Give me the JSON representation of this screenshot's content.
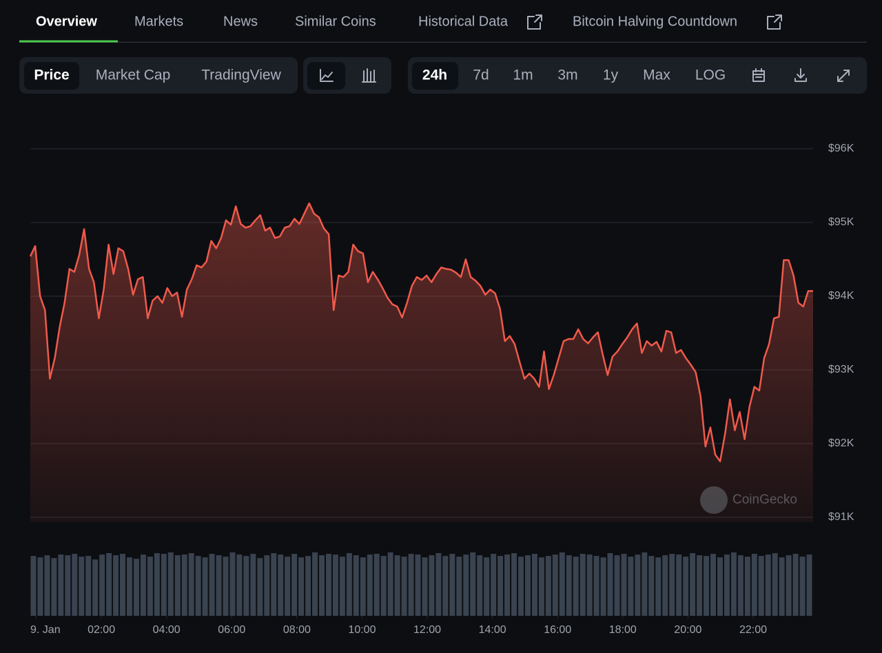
{
  "tabs": [
    "Overview",
    "Markets",
    "News",
    "Similar Coins",
    "Historical Data",
    "Bitcoin Halving Countdown"
  ],
  "chart_tabs": [
    "Price",
    "Market Cap",
    "TradingView"
  ],
  "ranges": [
    "24h",
    "7d",
    "1m",
    "3m",
    "1y",
    "Max",
    "LOG"
  ],
  "watermark": "CoinGecko",
  "chart_data": {
    "type": "line",
    "series": [
      {
        "color": "#f05a4b",
        "values": [
          94540,
          94680,
          94000,
          93810,
          92880,
          93160,
          93580,
          93910,
          94370,
          94330,
          94560,
          94910,
          94370,
          94190,
          93700,
          94090,
          94700,
          94300,
          94650,
          94610,
          94370,
          94020,
          94230,
          94260,
          93700,
          93940,
          94000,
          93910,
          94110,
          94000,
          94050,
          93720,
          94090,
          94230,
          94420,
          94390,
          94470,
          94750,
          94650,
          94790,
          95030,
          94970,
          95220,
          94980,
          94930,
          94950,
          95030,
          95100,
          94890,
          94930,
          94790,
          94810,
          94930,
          94950,
          95050,
          94980,
          95120,
          95260,
          95120,
          95070,
          94920,
          94840,
          93810,
          94280,
          94260,
          94330,
          94700,
          94610,
          94580,
          94190,
          94330,
          94230,
          94110,
          93980,
          93890,
          93860,
          93710,
          93910,
          94140,
          94260,
          94220,
          94280,
          94190,
          94300,
          94390,
          94370,
          94360,
          94320,
          94260,
          94500,
          94260,
          94210,
          94140,
          94020,
          94090,
          94040,
          93830,
          93390,
          93460,
          93350,
          93110,
          92880,
          92950,
          92880,
          92770,
          93250,
          92740,
          92930,
          93160,
          93390,
          93420,
          93420,
          93550,
          93420,
          93360,
          93440,
          93510,
          93210,
          92930,
          93180,
          93250,
          93350,
          93440,
          93550,
          93630,
          93230,
          93390,
          93330,
          93380,
          93250,
          93530,
          93510,
          93230,
          93270,
          93160,
          93070,
          92970,
          92640,
          91960,
          92220,
          91850,
          91760,
          92130,
          92600,
          92180,
          92430,
          92060,
          92500,
          92770,
          92720,
          93160,
          93350,
          93700,
          93720,
          94490,
          94490,
          94280,
          93910,
          93860,
          94070,
          94070
        ]
      }
    ],
    "volume": {
      "color": "#3a4350",
      "values": [
        85,
        83,
        86,
        82,
        87,
        86,
        88,
        84,
        85,
        80,
        87,
        89,
        86,
        88,
        83,
        81,
        87,
        84,
        89,
        88,
        90,
        86,
        87,
        89,
        85,
        83,
        88,
        86,
        84,
        90,
        87,
        85,
        88,
        82,
        86,
        89,
        87,
        84,
        88,
        83,
        85,
        90,
        86,
        88,
        87,
        84,
        89,
        86,
        83,
        87,
        88,
        85,
        90,
        86,
        84,
        88,
        87,
        83,
        86,
        89,
        85,
        88,
        84,
        87,
        90,
        86,
        83,
        88,
        85,
        87,
        89,
        84,
        86,
        88,
        83,
        85,
        87,
        90,
        86,
        84,
        88,
        87,
        85,
        83,
        89,
        86,
        88,
        84,
        87,
        90,
        85,
        83,
        86,
        88,
        87,
        84,
        89,
        86,
        85,
        88,
        83,
        87,
        90,
        86,
        84,
        88,
        85,
        87,
        89,
        83,
        86,
        88,
        84,
        87
      ]
    },
    "ylim": [
      91000,
      96000
    ],
    "yticks": [
      {
        "value": 91000,
        "label": "$91K"
      },
      {
        "value": 92000,
        "label": "$92K"
      },
      {
        "value": 93000,
        "label": "$93K"
      },
      {
        "value": 94000,
        "label": "$94K"
      },
      {
        "value": 95000,
        "label": "$95K"
      },
      {
        "value": 96000,
        "label": "$96K"
      }
    ],
    "xlim": [
      -0.18,
      23.84
    ],
    "xticks": [
      {
        "value": 0,
        "label": "9. Jan"
      },
      {
        "value": 2,
        "label": "02:00"
      },
      {
        "value": 4,
        "label": "04:00"
      },
      {
        "value": 6,
        "label": "06:00"
      },
      {
        "value": 8,
        "label": "08:00"
      },
      {
        "value": 10,
        "label": "10:00"
      },
      {
        "value": 12,
        "label": "12:00"
      },
      {
        "value": 14,
        "label": "14:00"
      },
      {
        "value": 16,
        "label": "16:00"
      },
      {
        "value": 18,
        "label": "18:00"
      },
      {
        "value": 20,
        "label": "20:00"
      },
      {
        "value": 22,
        "label": "22:00"
      }
    ],
    "grid": true
  }
}
